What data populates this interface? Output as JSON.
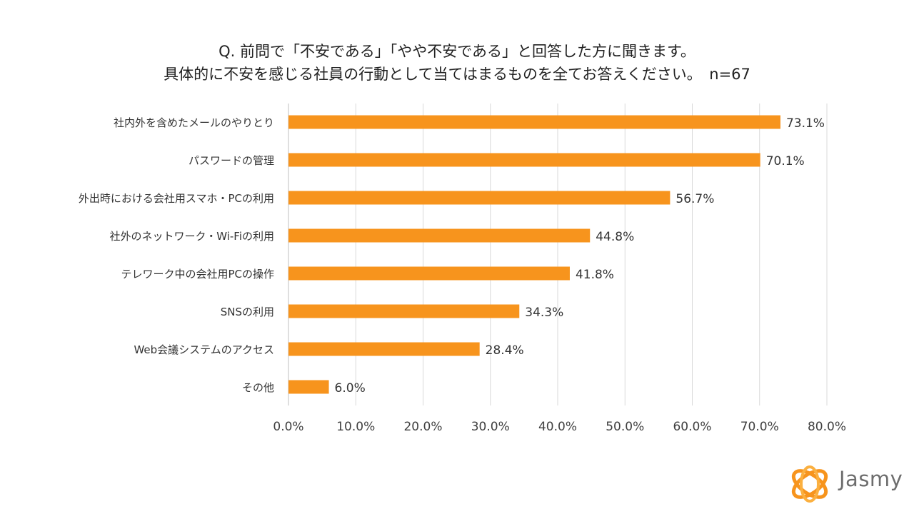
{
  "title": {
    "line1": "Q. 前問で「不安である」「やや不安である」と回答した方に聞きます。",
    "line2": "具体的に不安を感じる社員の行動として当てはまるものを全てお答えください。　n=67"
  },
  "brand": {
    "name": "Jasmy",
    "color": "#f7941d"
  },
  "chart_data": {
    "type": "bar",
    "orientation": "horizontal",
    "categories": [
      "社内外を含めたメールのやりとり",
      "パスワードの管理",
      "外出時における会社用スマホ・PCの利用",
      "社外のネットワーク・Wi-Fiの利用",
      "テレワーク中の会社用PCの操作",
      "SNSの利用",
      "Web会議システムのアクセス",
      "その他"
    ],
    "values": [
      73.1,
      70.1,
      56.7,
      44.8,
      41.8,
      34.3,
      28.4,
      6.0
    ],
    "value_labels": [
      "73.1%",
      "70.1%",
      "56.7%",
      "44.8%",
      "41.8%",
      "34.3%",
      "28.4%",
      "6.0%"
    ],
    "xlim": [
      0,
      80
    ],
    "x_ticks": [
      "0.0%",
      "10.0%",
      "20.0%",
      "30.0%",
      "40.0%",
      "50.0%",
      "60.0%",
      "70.0%",
      "80.0%"
    ],
    "grid": true,
    "bar_color": "#f7941d",
    "grid_color": "#d9d9d9"
  }
}
